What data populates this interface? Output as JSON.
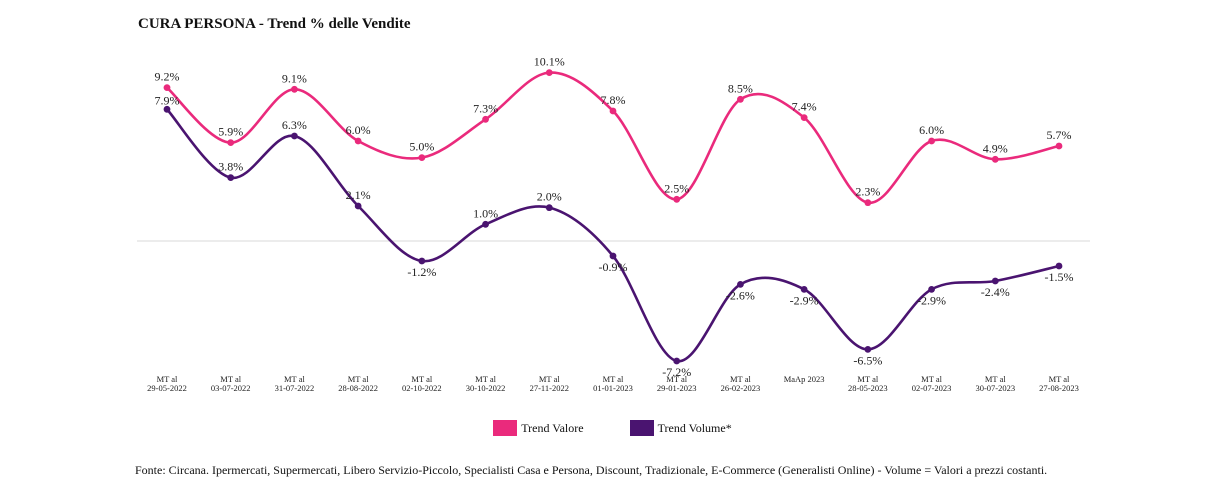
{
  "title": "CURA PERSONA - Trend % delle Vendite",
  "footnote": "Fonte: Circana. Ipermercati, Supermercati, Libero Servizio-Piccolo, Specialisti Casa e Persona, Discount, Tradizionale, E-Commerce (Generalisti Online) - Volume = Valori a prezzi costanti.",
  "colors": {
    "valore": "#ea2a7c",
    "volume": "#4a1470",
    "zero_line": "#d9d9d9"
  },
  "chart_data": {
    "type": "line",
    "title": "CURA PERSONA - Trend % delle Vendite",
    "categories": [
      [
        "MT al",
        "29-05-2022"
      ],
      [
        "MT al",
        "03-07-2022"
      ],
      [
        "MT al",
        "31-07-2022"
      ],
      [
        "MT al",
        "28-08-2022"
      ],
      [
        "MT al",
        "02-10-2022"
      ],
      [
        "MT al",
        "30-10-2022"
      ],
      [
        "MT al",
        "27-11-2022"
      ],
      [
        "MT al",
        "01-01-2023"
      ],
      [
        "MT al",
        "29-01-2023"
      ],
      [
        "MT al",
        "26-02-2023"
      ],
      [
        "MaAp 2023"
      ],
      [
        "MT al",
        "28-05-2023"
      ],
      [
        "MT al",
        "02-07-2023"
      ],
      [
        "MT al",
        "30-07-2023"
      ],
      [
        "MT al",
        "27-08-2023"
      ]
    ],
    "series": [
      {
        "name": "Trend Valore",
        "color": "#ea2a7c",
        "values": [
          9.2,
          5.9,
          9.1,
          6.0,
          5.0,
          7.3,
          10.1,
          7.8,
          2.5,
          8.5,
          7.4,
          2.3,
          6.0,
          4.9,
          5.7
        ],
        "labels": [
          "9.2%",
          "5.9%",
          "9.1%",
          "6.0%",
          "5.0%",
          "7.3%",
          "10.1%",
          "7.8%",
          "2.5%",
          "8.5%",
          "7.4%",
          "2.3%",
          "6.0%",
          "4.9%",
          "5.7%"
        ]
      },
      {
        "name": "Trend Volume*",
        "color": "#4a1470",
        "values": [
          7.9,
          3.8,
          6.3,
          2.1,
          -1.2,
          1.0,
          2.0,
          -0.9,
          -7.2,
          -2.6,
          -2.9,
          -6.5,
          -2.9,
          -2.4,
          -1.5
        ],
        "labels": [
          "7.9%",
          "3.8%",
          "6.3%",
          "2.1%",
          "-1.2%",
          "1.0%",
          "2.0%",
          "-0.9%",
          "-7.2%",
          "-2.6%",
          "-2.9%",
          "-6.5%",
          "-2.9%",
          "-2.4%",
          "-1.5%"
        ]
      }
    ],
    "ylim": [
      -8,
      11
    ],
    "grid": false,
    "legend_position": "bottom"
  }
}
